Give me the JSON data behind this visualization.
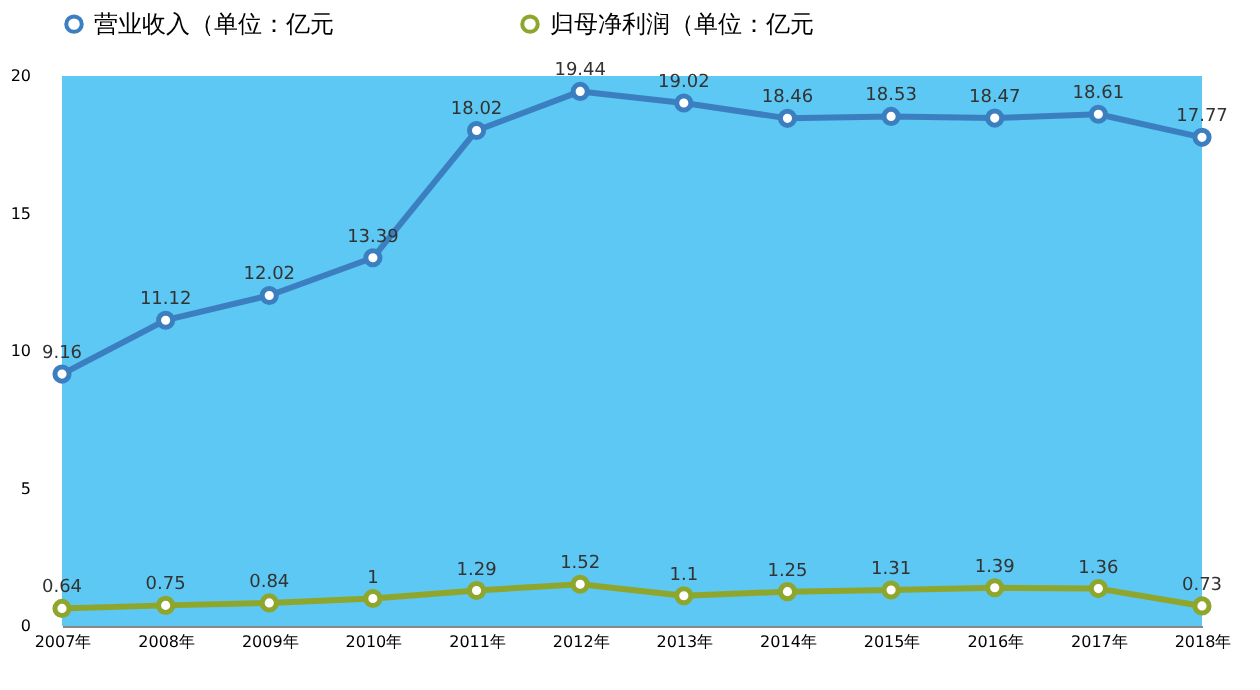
{
  "chart_data": {
    "type": "line",
    "categories": [
      "2007年",
      "2008年",
      "2009年",
      "2010年",
      "2011年",
      "2012年",
      "2013年",
      "2014年",
      "2015年",
      "2016年",
      "2017年",
      "2018年"
    ],
    "series": [
      {
        "name": "营业收入（单位：亿元",
        "color": "#3b7fc0",
        "values": [
          9.16,
          11.12,
          12.02,
          13.39,
          18.02,
          19.44,
          19.02,
          18.46,
          18.53,
          18.47,
          18.61,
          17.77
        ]
      },
      {
        "name": "归母净利润（单位：亿元",
        "color": "#8fa62c",
        "values": [
          0.64,
          0.75,
          0.84,
          1,
          1.29,
          1.52,
          1.1,
          1.25,
          1.31,
          1.39,
          1.36,
          0.73
        ]
      }
    ],
    "ylim": [
      0,
      20
    ],
    "yticks": [
      0,
      5,
      10,
      15,
      20
    ],
    "marker": "circle",
    "legend": "top",
    "data_labels": true
  }
}
